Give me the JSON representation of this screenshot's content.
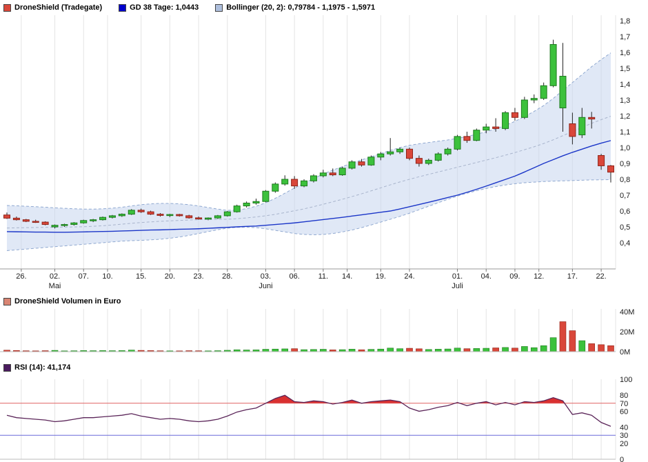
{
  "colors": {
    "up": "#3cc13c",
    "up_border": "#1d7a1d",
    "down": "#d9473a",
    "down_border": "#8f2318",
    "gd38_line": "#1a35c8",
    "bollinger_fill": "#c7d6ee",
    "bollinger_edge": "#8fa8d0",
    "rsi_line": "#5a2458",
    "overbought_fill": "#d93030",
    "line70": "#e06060",
    "line30": "#6868d8",
    "label70": "#d04040",
    "label30": "#5050d0"
  },
  "legend": {
    "main": [
      {
        "label": "DroneShield (Tradegate)",
        "color": "#d9473a"
      },
      {
        "label": "GD 38 Tage: 1,0443",
        "color": "#0000cc"
      },
      {
        "label": "Bollinger (20, 2): 0,79784 - 1,1975 - 1,5971",
        "color": "#aebfdd"
      }
    ],
    "volume": [
      {
        "label": "DroneShield Volumen in Euro",
        "color": "#d98573"
      }
    ],
    "rsi": [
      {
        "label": "RSI (14): 41,174",
        "color": "#4a1a5e"
      }
    ]
  },
  "chart_data": [
    {
      "type": "candlestick",
      "title": "DroneShield (Tradegate)",
      "indicators": {
        "gd38_value": "1,0443",
        "bollinger_values": "0,79784 - 1,1975 - 1,5971"
      },
      "ylim": [
        0.22,
        1.84
      ],
      "yticks": [
        {
          "v": 1.8,
          "label": "1,8"
        },
        {
          "v": 1.7,
          "label": "1,7"
        },
        {
          "v": 1.6,
          "label": "1,6"
        },
        {
          "v": 1.5,
          "label": "1,5"
        },
        {
          "v": 1.4,
          "label": "1,4"
        },
        {
          "v": 1.3,
          "label": "1,3"
        },
        {
          "v": 1.2,
          "label": "1,2"
        },
        {
          "v": 1.1,
          "label": "1,1"
        },
        {
          "v": 1.0,
          "label": "1,0"
        },
        {
          "v": 0.9,
          "label": "0,9"
        },
        {
          "v": 0.8,
          "label": "0,8"
        },
        {
          "v": 0.7,
          "label": "0,7"
        },
        {
          "v": 0.6,
          "label": "0,6"
        },
        {
          "v": 0.5,
          "label": "0,5"
        },
        {
          "v": 0.4,
          "label": "0,4"
        }
      ],
      "xticks": [
        {
          "label": "26.",
          "i": 1.5
        },
        {
          "label": "02.",
          "i": 5
        },
        {
          "label": "07.",
          "i": 8
        },
        {
          "label": "10.",
          "i": 10.5
        },
        {
          "label": "15.",
          "i": 14
        },
        {
          "label": "20.",
          "i": 17
        },
        {
          "label": "23.",
          "i": 20
        },
        {
          "label": "28.",
          "i": 23
        },
        {
          "label": "03.",
          "i": 27
        },
        {
          "label": "06.",
          "i": 30
        },
        {
          "label": "11.",
          "i": 33
        },
        {
          "label": "14.",
          "i": 35.5
        },
        {
          "label": "19.",
          "i": 39
        },
        {
          "label": "24.",
          "i": 42
        },
        {
          "label": "01.",
          "i": 47
        },
        {
          "label": "04.",
          "i": 50
        },
        {
          "label": "09.",
          "i": 53
        },
        {
          "label": "12.",
          "i": 55.5
        },
        {
          "label": "17.",
          "i": 59
        },
        {
          "label": "22.",
          "i": 62
        }
      ],
      "months": [
        {
          "label": "Mai",
          "i": 5
        },
        {
          "label": "Juni",
          "i": 27
        },
        {
          "label": "Juli",
          "i": 47
        }
      ],
      "series": {
        "ohlc": [
          [
            0.575,
            0.59,
            0.55,
            0.555
          ],
          [
            0.555,
            0.565,
            0.54,
            0.545
          ],
          [
            0.545,
            0.55,
            0.53,
            0.535
          ],
          [
            0.535,
            0.545,
            0.525,
            0.53
          ],
          [
            0.53,
            0.535,
            0.51,
            0.515
          ],
          [
            0.5,
            0.515,
            0.49,
            0.51
          ],
          [
            0.51,
            0.52,
            0.5,
            0.515
          ],
          [
            0.515,
            0.53,
            0.508,
            0.525
          ],
          [
            0.525,
            0.545,
            0.52,
            0.54
          ],
          [
            0.54,
            0.55,
            0.53,
            0.545
          ],
          [
            0.545,
            0.565,
            0.54,
            0.56
          ],
          [
            0.56,
            0.575,
            0.553,
            0.57
          ],
          [
            0.57,
            0.585,
            0.563,
            0.58
          ],
          [
            0.58,
            0.612,
            0.575,
            0.605
          ],
          [
            0.605,
            0.615,
            0.588,
            0.595
          ],
          [
            0.595,
            0.602,
            0.575,
            0.58
          ],
          [
            0.58,
            0.587,
            0.565,
            0.572
          ],
          [
            0.572,
            0.582,
            0.562,
            0.578
          ],
          [
            0.578,
            0.582,
            0.565,
            0.57
          ],
          [
            0.57,
            0.576,
            0.552,
            0.557
          ],
          [
            0.557,
            0.565,
            0.545,
            0.55
          ],
          [
            0.55,
            0.56,
            0.542,
            0.556
          ],
          [
            0.556,
            0.575,
            0.55,
            0.57
          ],
          [
            0.57,
            0.6,
            0.565,
            0.595
          ],
          [
            0.595,
            0.64,
            0.59,
            0.632
          ],
          [
            0.632,
            0.66,
            0.622,
            0.65
          ],
          [
            0.65,
            0.678,
            0.64,
            0.66
          ],
          [
            0.66,
            0.732,
            0.655,
            0.725
          ],
          [
            0.725,
            0.78,
            0.715,
            0.77
          ],
          [
            0.77,
            0.825,
            0.76,
            0.8
          ],
          [
            0.8,
            0.82,
            0.74,
            0.758
          ],
          [
            0.758,
            0.8,
            0.75,
            0.79
          ],
          [
            0.79,
            0.832,
            0.78,
            0.822
          ],
          [
            0.822,
            0.86,
            0.812,
            0.84
          ],
          [
            0.84,
            0.868,
            0.82,
            0.828
          ],
          [
            0.828,
            0.88,
            0.822,
            0.87
          ],
          [
            0.87,
            0.92,
            0.862,
            0.91
          ],
          [
            0.91,
            0.928,
            0.88,
            0.89
          ],
          [
            0.89,
            0.95,
            0.885,
            0.94
          ],
          [
            0.94,
            0.972,
            0.92,
            0.96
          ],
          [
            0.96,
            1.06,
            0.95,
            0.973
          ],
          [
            0.973,
            1.0,
            0.96,
            0.99
          ],
          [
            0.99,
            1.0,
            0.92,
            0.932
          ],
          [
            0.932,
            0.95,
            0.88,
            0.9
          ],
          [
            0.9,
            0.93,
            0.89,
            0.92
          ],
          [
            0.92,
            0.97,
            0.912,
            0.96
          ],
          [
            0.96,
            1.0,
            0.95,
            0.99
          ],
          [
            0.99,
            1.08,
            0.982,
            1.07
          ],
          [
            1.07,
            1.1,
            1.03,
            1.045
          ],
          [
            1.045,
            1.12,
            1.04,
            1.11
          ],
          [
            1.11,
            1.15,
            1.09,
            1.13
          ],
          [
            1.13,
            1.185,
            1.1,
            1.12
          ],
          [
            1.12,
            1.23,
            1.11,
            1.22
          ],
          [
            1.22,
            1.25,
            1.17,
            1.19
          ],
          [
            1.19,
            1.32,
            1.18,
            1.3
          ],
          [
            1.3,
            1.335,
            1.28,
            1.31
          ],
          [
            1.31,
            1.41,
            1.3,
            1.39
          ],
          [
            1.39,
            1.68,
            1.38,
            1.65
          ],
          [
            1.25,
            1.66,
            1.1,
            1.45
          ],
          [
            1.15,
            1.22,
            1.02,
            1.07
          ],
          [
            1.08,
            1.25,
            1.06,
            1.19
          ],
          [
            1.19,
            1.225,
            1.12,
            1.18
          ],
          [
            0.95,
            0.96,
            0.86,
            0.885
          ],
          [
            0.885,
            0.89,
            0.78,
            0.845
          ]
        ],
        "gd38": [
          0.47,
          0.469,
          0.468,
          0.467,
          0.467,
          0.466,
          0.466,
          0.467,
          0.468,
          0.47,
          0.471,
          0.472,
          0.474,
          0.476,
          0.478,
          0.48,
          0.481,
          0.483,
          0.485,
          0.486,
          0.488,
          0.491,
          0.494,
          0.497,
          0.5,
          0.503,
          0.505,
          0.51,
          0.515,
          0.52,
          0.525,
          0.532,
          0.539,
          0.546,
          0.553,
          0.56,
          0.568,
          0.576,
          0.584,
          0.592,
          0.6,
          0.613,
          0.627,
          0.641,
          0.655,
          0.67,
          0.685,
          0.7,
          0.718,
          0.737,
          0.757,
          0.778,
          0.799,
          0.82,
          0.846,
          0.873,
          0.9,
          0.924,
          0.948,
          0.97,
          0.99,
          1.01,
          1.028,
          1.044
        ],
        "boll_upper": [
          0.635,
          0.633,
          0.63,
          0.627,
          0.624,
          0.62,
          0.617,
          0.614,
          0.612,
          0.612,
          0.614,
          0.618,
          0.624,
          0.632,
          0.64,
          0.645,
          0.648,
          0.648,
          0.645,
          0.64,
          0.632,
          0.622,
          0.612,
          0.604,
          0.606,
          0.615,
          0.63,
          0.652,
          0.68,
          0.712,
          0.745,
          0.775,
          0.805,
          0.833,
          0.858,
          0.88,
          0.902,
          0.922,
          0.942,
          0.962,
          0.982,
          1.0,
          1.014,
          1.024,
          1.032,
          1.04,
          1.048,
          1.058,
          1.07,
          1.084,
          1.1,
          1.118,
          1.14,
          1.165,
          1.195,
          1.228,
          1.265,
          1.31,
          1.36,
          1.41,
          1.46,
          1.51,
          1.555,
          1.597
        ],
        "boll_lower": [
          0.35,
          0.355,
          0.36,
          0.365,
          0.37,
          0.375,
          0.38,
          0.385,
          0.39,
          0.395,
          0.4,
          0.405,
          0.41,
          0.413,
          0.415,
          0.418,
          0.422,
          0.428,
          0.436,
          0.446,
          0.458,
          0.47,
          0.482,
          0.492,
          0.497,
          0.498,
          0.495,
          0.488,
          0.478,
          0.468,
          0.458,
          0.452,
          0.45,
          0.452,
          0.458,
          0.468,
          0.48,
          0.495,
          0.512,
          0.53,
          0.548,
          0.566,
          0.586,
          0.608,
          0.63,
          0.652,
          0.674,
          0.694,
          0.712,
          0.728,
          0.742,
          0.754,
          0.764,
          0.772,
          0.778,
          0.782,
          0.786,
          0.788,
          0.79,
          0.792,
          0.794,
          0.796,
          0.797,
          0.798
        ]
      }
    },
    {
      "type": "bar",
      "title": "DroneShield Volumen in Euro",
      "ylim": [
        0,
        40
      ],
      "yticks": [
        {
          "v": 40,
          "label": "40M"
        },
        {
          "v": 20,
          "label": "20M"
        },
        {
          "v": 0,
          "label": "0M"
        }
      ],
      "values": [
        1.5,
        1.2,
        0.9,
        0.8,
        1.0,
        1.3,
        0.8,
        0.9,
        1.1,
        1.0,
        1.1,
        1.0,
        1.1,
        1.6,
        1.3,
        1.1,
        0.9,
        0.8,
        0.8,
        1.0,
        0.9,
        0.8,
        1.0,
        1.4,
        1.9,
        1.7,
        1.8,
        2.4,
        2.6,
        2.8,
        3.0,
        2.0,
        2.2,
        2.4,
        1.8,
        2.0,
        2.5,
        1.9,
        2.3,
        2.6,
        3.6,
        3.0,
        3.4,
        2.9,
        2.2,
        2.5,
        2.7,
        3.6,
        3.0,
        3.2,
        3.4,
        3.8,
        4.2,
        3.6,
        5.2,
        4.0,
        6.0,
        14.0,
        30.0,
        21.0,
        11.0,
        8.0,
        7.0,
        6.0
      ],
      "bar_colors": [
        "r",
        "r",
        "r",
        "r",
        "r",
        "g",
        "g",
        "g",
        "g",
        "g",
        "g",
        "g",
        "g",
        "g",
        "r",
        "r",
        "r",
        "g",
        "r",
        "r",
        "r",
        "g",
        "g",
        "g",
        "g",
        "g",
        "g",
        "g",
        "g",
        "g",
        "r",
        "g",
        "g",
        "g",
        "r",
        "g",
        "g",
        "r",
        "g",
        "g",
        "g",
        "g",
        "r",
        "r",
        "g",
        "g",
        "g",
        "g",
        "r",
        "g",
        "g",
        "r",
        "g",
        "r",
        "g",
        "g",
        "g",
        "g",
        "r",
        "r",
        "g",
        "r",
        "r",
        "r"
      ]
    },
    {
      "type": "line",
      "title": "RSI (14)",
      "current_value": "41,174",
      "ylim": [
        0,
        100
      ],
      "yticks": [
        100,
        80,
        60,
        40,
        20,
        0
      ],
      "overbought": 70,
      "oversold": 30,
      "values": [
        55,
        52,
        51,
        50,
        49,
        47,
        48,
        50,
        52,
        52,
        53,
        54,
        55,
        57,
        54,
        52,
        50,
        51,
        50,
        48,
        47,
        48,
        50,
        54,
        59,
        62,
        64,
        70,
        76,
        80,
        72,
        71,
        73,
        72,
        69,
        71,
        74,
        70,
        72,
        73,
        74,
        72,
        64,
        60,
        62,
        65,
        67,
        71,
        67,
        70,
        72,
        68,
        71,
        68,
        72,
        71,
        73,
        77,
        73,
        56,
        58,
        55,
        46,
        41.17
      ]
    }
  ]
}
